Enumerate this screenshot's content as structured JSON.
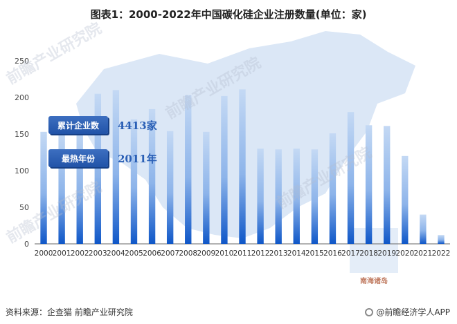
{
  "title": "图表1：2000-2022年中国碳化硅企业注册数量(单位：家)",
  "callouts": {
    "total_label": "累计企业数",
    "total_value": "4413家",
    "peak_label": "最热年份",
    "peak_value": "2011年"
  },
  "map_label": "南海诸岛",
  "watermarks": [
    "前瞻产业研究院",
    "前瞻产业研究院",
    "前瞻产业研究院",
    "前瞻产业研究院"
  ],
  "footer": {
    "source": "资料来源：企查猫 前瞻产业研究院",
    "brand": "@前瞻经济学人APP"
  },
  "colors": {
    "bar_top": "#b9d2f2",
    "bar_bottom": "#0f57c8",
    "map": "#dbe7f6"
  },
  "chart_data": {
    "type": "bar",
    "title": "图表1：2000-2022年中国碳化硅企业注册数量(单位：家)",
    "xlabel": "",
    "ylabel": "",
    "ylim": [
      0,
      250
    ],
    "yticks": [
      0,
      50,
      100,
      150,
      200,
      250
    ],
    "grid": false,
    "categories": [
      "2000",
      "2001",
      "2002",
      "2003",
      "2004",
      "2005",
      "2006",
      "2007",
      "2008",
      "2009",
      "2010",
      "2011",
      "2012",
      "2013",
      "2014",
      "2015",
      "2016",
      "2017",
      "2018",
      "2019",
      "2020",
      "2021",
      "2022"
    ],
    "values": [
      153,
      153,
      160,
      205,
      210,
      170,
      184,
      154,
      203,
      153,
      202,
      211,
      130,
      129,
      130,
      129,
      151,
      180,
      162,
      161,
      120,
      40,
      12
    ]
  }
}
